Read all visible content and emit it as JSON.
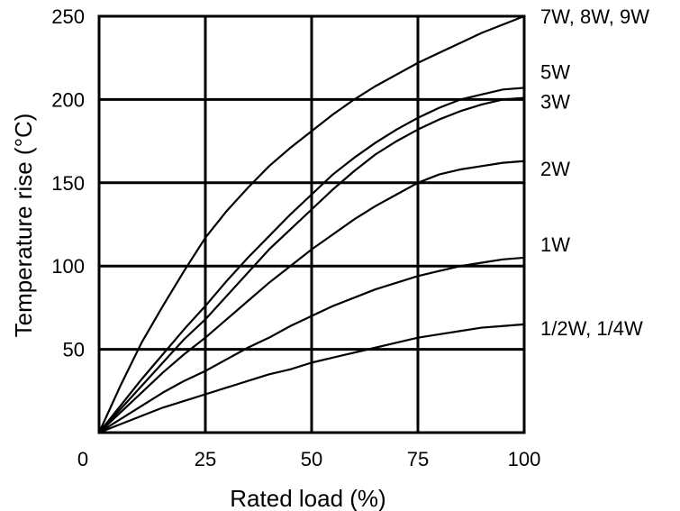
{
  "chart_data": {
    "type": "line",
    "title": "",
    "xlabel": "Rated load (%)",
    "ylabel": "Temperature rise (°C)",
    "xlim": [
      0,
      100
    ],
    "ylim": [
      0,
      250
    ],
    "x_ticks": [
      0,
      25,
      50,
      75,
      100
    ],
    "x_tick_labels": [
      "0",
      "25",
      "50",
      "75",
      "100"
    ],
    "y_ticks": [
      0,
      50,
      100,
      150,
      200,
      250
    ],
    "y_tick_labels": [
      "0",
      "50",
      "100",
      "150",
      "200",
      "250"
    ],
    "grid": true,
    "legend": "none",
    "series_color": "#000000",
    "series": [
      {
        "name": "7W, 8W, 9W",
        "x": [
          0,
          5,
          10,
          15,
          20,
          25,
          30,
          35,
          40,
          45,
          50,
          55,
          60,
          65,
          70,
          75,
          80,
          85,
          90,
          95,
          100
        ],
        "values": [
          0,
          28,
          54,
          76,
          97,
          117,
          133,
          147,
          160,
          171,
          181,
          191,
          200,
          208,
          215,
          222,
          228,
          234,
          240,
          245,
          250
        ]
      },
      {
        "name": "5W",
        "x": [
          0,
          5,
          10,
          15,
          20,
          25,
          30,
          35,
          40,
          45,
          50,
          55,
          60,
          65,
          70,
          75,
          80,
          85,
          90,
          95,
          100
        ],
        "values": [
          0,
          16,
          32,
          47,
          62,
          76,
          91,
          105,
          118,
          131,
          143,
          155,
          165,
          174,
          182,
          189,
          195,
          200,
          203,
          206,
          207
        ]
      },
      {
        "name": "3W",
        "x": [
          0,
          5,
          10,
          15,
          20,
          25,
          30,
          35,
          40,
          45,
          50,
          55,
          60,
          65,
          70,
          75,
          80,
          85,
          90,
          95,
          100
        ],
        "values": [
          0,
          14,
          28,
          42,
          56,
          68,
          82,
          96,
          110,
          122,
          134,
          146,
          157,
          167,
          175,
          182,
          188,
          193,
          197,
          200,
          201
        ]
      },
      {
        "name": "2W",
        "x": [
          0,
          5,
          10,
          15,
          20,
          25,
          30,
          35,
          40,
          45,
          50,
          55,
          60,
          65,
          70,
          75,
          80,
          85,
          90,
          95,
          100
        ],
        "values": [
          0,
          12,
          24,
          36,
          47,
          57,
          68,
          79,
          90,
          100,
          110,
          119,
          128,
          136,
          143,
          150,
          155,
          158,
          160,
          162,
          163
        ]
      },
      {
        "name": "1W",
        "x": [
          0,
          5,
          10,
          15,
          20,
          25,
          30,
          35,
          40,
          45,
          50,
          55,
          60,
          65,
          70,
          75,
          80,
          85,
          90,
          95,
          100
        ],
        "values": [
          0,
          8,
          16,
          24,
          31,
          37,
          44,
          51,
          57,
          64,
          70,
          76,
          81,
          86,
          90,
          94,
          97,
          100,
          102,
          104,
          105
        ]
      },
      {
        "name": "1/2W, 1/4W",
        "x": [
          0,
          5,
          10,
          15,
          20,
          25,
          30,
          35,
          40,
          45,
          50,
          55,
          60,
          65,
          70,
          75,
          80,
          85,
          90,
          95,
          100
        ],
        "values": [
          0,
          5,
          10,
          15,
          19,
          23,
          27,
          31,
          35,
          38,
          42,
          45,
          48,
          51,
          54,
          57,
          59,
          61,
          63,
          64,
          65
        ]
      }
    ]
  }
}
